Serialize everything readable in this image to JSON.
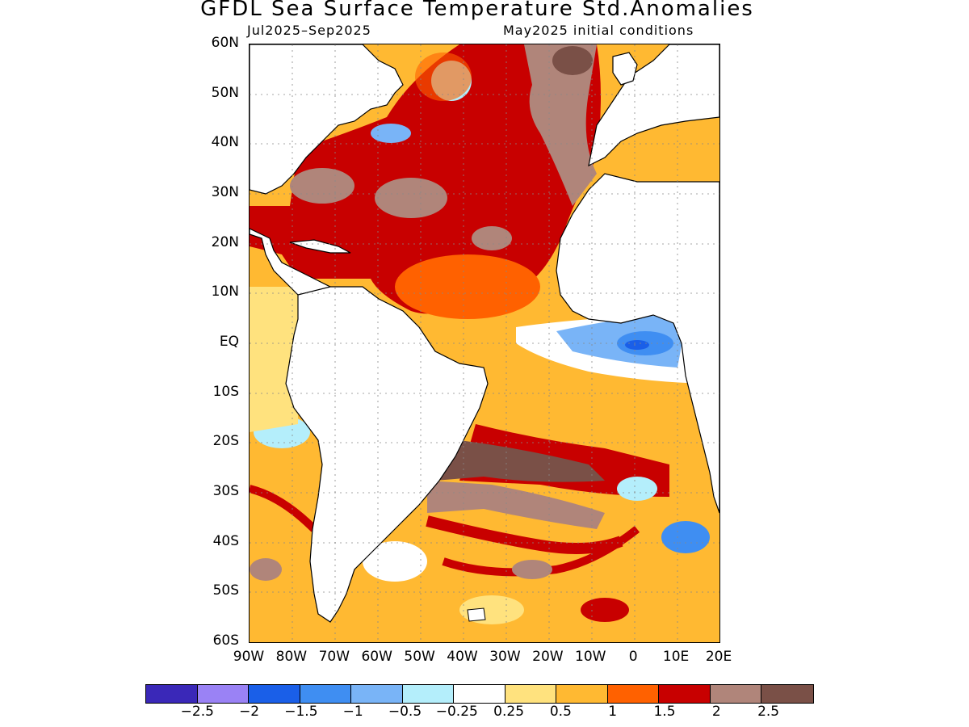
{
  "title": "GFDL Sea Surface Temperature Std.Anomalies",
  "subtitle_left": "Jul2025–Sep2025",
  "subtitle_right": "May2025 initial conditions",
  "lat_labels": [
    "60N",
    "50N",
    "40N",
    "30N",
    "20N",
    "10N",
    "EQ",
    "10S",
    "20S",
    "30S",
    "40S",
    "50S",
    "60S"
  ],
  "lon_labels": [
    "90W",
    "80W",
    "70W",
    "60W",
    "50W",
    "40W",
    "30W",
    "20W",
    "10W",
    "0",
    "10E",
    "20E"
  ],
  "colorbar": {
    "colors": [
      "#3a28b8",
      "#9a82f5",
      "#1a5fe8",
      "#3f8ef2",
      "#79b4f7",
      "#b4eefb",
      "#ffffff",
      "#ffe27e",
      "#ffb932",
      "#ff6100",
      "#c80000",
      "#b0857a",
      "#7a5047"
    ],
    "labels": [
      "−2.5",
      "−2",
      "−1.5",
      "−1",
      "−0.5",
      "−0.25",
      "0.25",
      "0.5",
      "1",
      "1.5",
      "2",
      "2.5"
    ]
  },
  "map_extent": {
    "lon_min": -90,
    "lon_max": 20,
    "lat_min": -60,
    "lat_max": 60
  }
}
